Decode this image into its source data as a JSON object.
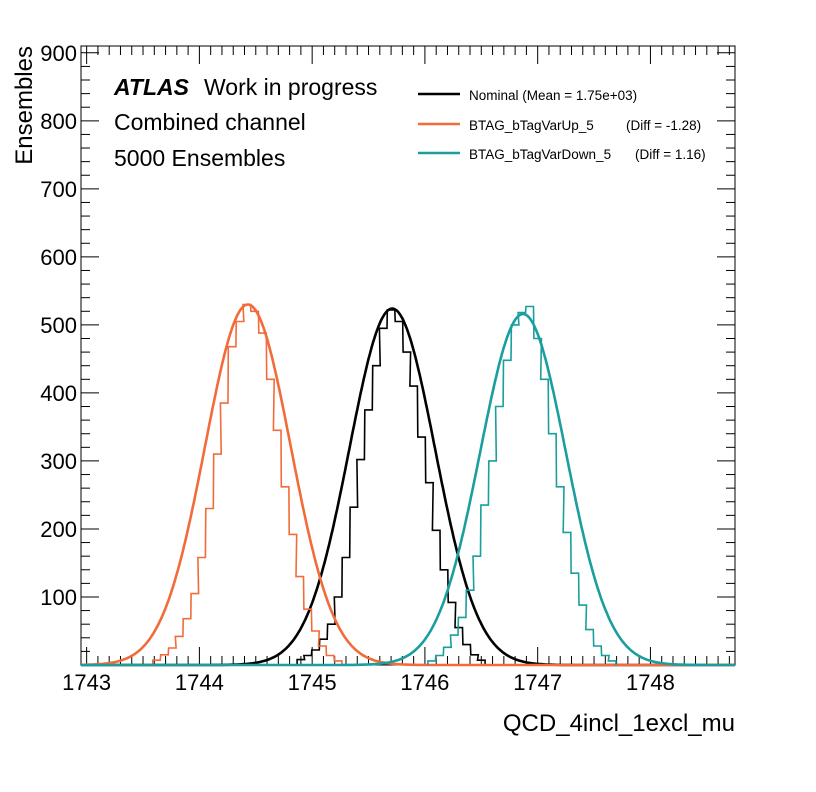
{
  "chart_data": {
    "type": "line",
    "xlabel": "QCD_4incl_1excl_mu",
    "ylabel": "Ensembles",
    "xlim": [
      1742.95,
      1748.75
    ],
    "ylim": [
      0,
      910
    ],
    "x_ticks": [
      1743,
      1744,
      1745,
      1746,
      1747,
      1748
    ],
    "y_ticks": [
      100,
      200,
      300,
      400,
      500,
      600,
      700,
      800,
      900
    ],
    "grid": false,
    "legend_position": "top-right",
    "annotations": {
      "atlas": "ATLAS",
      "status": "Work in progress",
      "channel": "Combined channel",
      "ensembles": "5000 Ensembles"
    },
    "series": [
      {
        "name": "Nominal (Mean = 1.75e+03)",
        "color": "#000000",
        "mean": 1745.71,
        "sigma": 0.38,
        "peak": 524,
        "hist_bins": [
          [
            1744.9,
            8
          ],
          [
            1744.96,
            14
          ],
          [
            1745.03,
            22
          ],
          [
            1745.1,
            38
          ],
          [
            1745.17,
            60
          ],
          [
            1745.23,
            100
          ],
          [
            1745.3,
            158
          ],
          [
            1745.37,
            232
          ],
          [
            1745.43,
            302
          ],
          [
            1745.5,
            375
          ],
          [
            1745.57,
            440
          ],
          [
            1745.63,
            495
          ],
          [
            1745.7,
            522
          ],
          [
            1745.77,
            505
          ],
          [
            1745.84,
            460
          ],
          [
            1745.9,
            410
          ],
          [
            1745.97,
            335
          ],
          [
            1746.04,
            268
          ],
          [
            1746.1,
            198
          ],
          [
            1746.17,
            140
          ],
          [
            1746.24,
            92
          ],
          [
            1746.3,
            55
          ],
          [
            1746.37,
            30
          ],
          [
            1746.44,
            15
          ],
          [
            1746.5,
            7
          ]
        ]
      },
      {
        "name": "BTAG_bTagVarUp_5",
        "diff": "(Diff = -1.28)",
        "color": "#f26b3a",
        "mean": 1744.43,
        "sigma": 0.38,
        "peak": 530,
        "hist_bins": [
          [
            1743.62,
            7
          ],
          [
            1743.69,
            15
          ],
          [
            1743.76,
            25
          ],
          [
            1743.82,
            42
          ],
          [
            1743.89,
            68
          ],
          [
            1743.96,
            105
          ],
          [
            1744.02,
            158
          ],
          [
            1744.09,
            230
          ],
          [
            1744.16,
            310
          ],
          [
            1744.22,
            385
          ],
          [
            1744.29,
            468
          ],
          [
            1744.36,
            505
          ],
          [
            1744.42,
            530
          ],
          [
            1744.49,
            520
          ],
          [
            1744.56,
            488
          ],
          [
            1744.63,
            420
          ],
          [
            1744.69,
            345
          ],
          [
            1744.76,
            262
          ],
          [
            1744.83,
            192
          ],
          [
            1744.89,
            130
          ],
          [
            1744.96,
            82
          ],
          [
            1745.03,
            50
          ],
          [
            1745.09,
            28
          ],
          [
            1745.16,
            14
          ],
          [
            1745.23,
            6
          ]
        ]
      },
      {
        "name": "BTAG_bTagVarDown_5",
        "diff": "(Diff = 1.16)",
        "color": "#1a9e9e",
        "mean": 1746.87,
        "sigma": 0.38,
        "peak": 516,
        "hist_bins": [
          [
            1746.06,
            6
          ],
          [
            1746.13,
            14
          ],
          [
            1746.2,
            26
          ],
          [
            1746.26,
            44
          ],
          [
            1746.33,
            70
          ],
          [
            1746.4,
            110
          ],
          [
            1746.46,
            160
          ],
          [
            1746.53,
            235
          ],
          [
            1746.6,
            300
          ],
          [
            1746.66,
            380
          ],
          [
            1746.73,
            448
          ],
          [
            1746.8,
            500
          ],
          [
            1746.86,
            518
          ],
          [
            1746.93,
            527
          ],
          [
            1747.0,
            480
          ],
          [
            1747.06,
            420
          ],
          [
            1747.13,
            340
          ],
          [
            1747.2,
            262
          ],
          [
            1747.26,
            195
          ],
          [
            1747.33,
            135
          ],
          [
            1747.4,
            88
          ],
          [
            1747.46,
            52
          ],
          [
            1747.53,
            28
          ],
          [
            1747.6,
            14
          ],
          [
            1747.66,
            6
          ]
        ]
      }
    ]
  }
}
